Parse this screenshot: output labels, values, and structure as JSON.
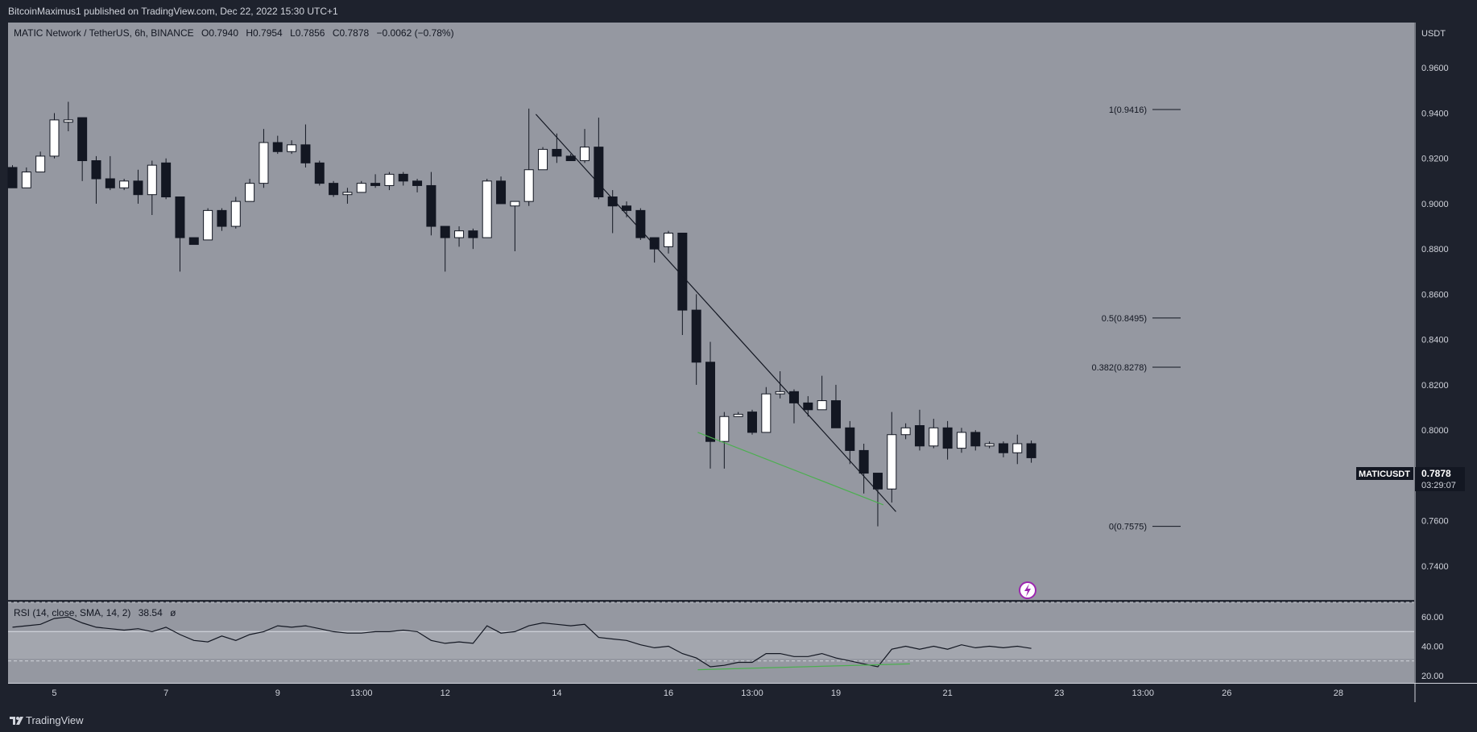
{
  "header": {
    "attribution": "BitcoinMaximus1 published on TradingView.com, Dec 22, 2022 15:30 UTC+1"
  },
  "legend": {
    "symbol": "MATIC Network / TetherUS, 6h, BINANCE",
    "o_label": "O",
    "o_value": "0.7940",
    "h_label": "H",
    "h_value": "0.7954",
    "l_label": "L",
    "l_value": "0.7856",
    "c_label": "C",
    "c_value": "0.7878",
    "change": "−0.0062 (−0.78%)"
  },
  "price_axis": {
    "currency": "USDT"
  },
  "last_price": {
    "symbol": "MATICUSDT",
    "price": "0.7878",
    "countdown": "03:29:07"
  },
  "fib_levels": [
    {
      "label": "1(0.9416)",
      "value": 0.9416
    },
    {
      "label": "0.5(0.8495)",
      "value": 0.8495
    },
    {
      "label": "0.382(0.8278)",
      "value": 0.8278
    },
    {
      "label": "0(0.7575)",
      "value": 0.7575
    }
  ],
  "rsi": {
    "label": "RSI (14, close, SMA, 14, 2)",
    "value": "38.54",
    "extra": "ø"
  },
  "footer": {
    "logo_icon": "tradingview-logo-icon",
    "brand": "TradingView"
  },
  "colors": {
    "pane_bg": "#9598a1",
    "rsi_bg": "#a3a6ae",
    "frame": "#1e222d",
    "bull_body": "#ffffff",
    "bear_body": "#131722",
    "trendline": "#131722",
    "divergence": "#4caf50",
    "axis_text": "#d1d4dc",
    "price_tag_bg": "#131722",
    "alert_ring": "#9c27b0"
  },
  "chart_data": [
    {
      "type": "candlestick",
      "title": "",
      "xlabel": "",
      "ylabel": "USDT",
      "ylim": [
        0.725,
        0.98
      ],
      "y_ticks": [
        0.96,
        0.94,
        0.92,
        0.9,
        0.88,
        0.86,
        0.84,
        0.82,
        0.8,
        0.78,
        0.76,
        0.74
      ],
      "y_tick_labels": [
        "0.9600",
        "0.9400",
        "0.9200",
        "0.9000",
        "0.8800",
        "0.8600",
        "0.8400",
        "0.8200",
        "0.8000",
        "0.7800",
        "0.7600",
        "0.7400"
      ],
      "x_ticks": [
        {
          "label": "5",
          "bar": 3
        },
        {
          "label": "7",
          "bar": 11
        },
        {
          "label": "9",
          "bar": 19
        },
        {
          "label": "13:00",
          "bar": 25
        },
        {
          "label": "12",
          "bar": 31
        },
        {
          "label": "14",
          "bar": 39
        },
        {
          "label": "16",
          "bar": 47
        },
        {
          "label": "13:00",
          "bar": 53
        },
        {
          "label": "19",
          "bar": 59
        },
        {
          "label": "21",
          "bar": 67
        },
        {
          "label": "23",
          "bar": 75
        },
        {
          "label": "13:00",
          "bar": 81
        },
        {
          "label": "26",
          "bar": 87
        },
        {
          "label": "28",
          "bar": 95
        }
      ],
      "grid": false,
      "candles": [
        {
          "o": 0.916,
          "h": 0.917,
          "l": 0.907,
          "c": 0.907
        },
        {
          "o": 0.907,
          "h": 0.916,
          "l": 0.907,
          "c": 0.914
        },
        {
          "o": 0.914,
          "h": 0.923,
          "l": 0.914,
          "c": 0.921
        },
        {
          "o": 0.921,
          "h": 0.94,
          "l": 0.92,
          "c": 0.937
        },
        {
          "o": 0.936,
          "h": 0.945,
          "l": 0.932,
          "c": 0.937
        },
        {
          "o": 0.938,
          "h": 0.938,
          "l": 0.91,
          "c": 0.919
        },
        {
          "o": 0.919,
          "h": 0.921,
          "l": 0.9,
          "c": 0.911
        },
        {
          "o": 0.911,
          "h": 0.921,
          "l": 0.906,
          "c": 0.907
        },
        {
          "o": 0.907,
          "h": 0.911,
          "l": 0.906,
          "c": 0.91
        },
        {
          "o": 0.91,
          "h": 0.915,
          "l": 0.9,
          "c": 0.904
        },
        {
          "o": 0.904,
          "h": 0.919,
          "l": 0.895,
          "c": 0.917
        },
        {
          "o": 0.918,
          "h": 0.92,
          "l": 0.902,
          "c": 0.903
        },
        {
          "o": 0.903,
          "h": 0.903,
          "l": 0.87,
          "c": 0.885
        },
        {
          "o": 0.885,
          "h": 0.885,
          "l": 0.882,
          "c": 0.882
        },
        {
          "o": 0.884,
          "h": 0.898,
          "l": 0.884,
          "c": 0.897
        },
        {
          "o": 0.897,
          "h": 0.898,
          "l": 0.888,
          "c": 0.89
        },
        {
          "o": 0.89,
          "h": 0.903,
          "l": 0.889,
          "c": 0.901
        },
        {
          "o": 0.901,
          "h": 0.911,
          "l": 0.901,
          "c": 0.909
        },
        {
          "o": 0.909,
          "h": 0.933,
          "l": 0.907,
          "c": 0.927
        },
        {
          "o": 0.927,
          "h": 0.93,
          "l": 0.922,
          "c": 0.923
        },
        {
          "o": 0.923,
          "h": 0.928,
          "l": 0.922,
          "c": 0.926
        },
        {
          "o": 0.926,
          "h": 0.935,
          "l": 0.916,
          "c": 0.918
        },
        {
          "o": 0.918,
          "h": 0.919,
          "l": 0.908,
          "c": 0.909
        },
        {
          "o": 0.909,
          "h": 0.91,
          "l": 0.903,
          "c": 0.904
        },
        {
          "o": 0.904,
          "h": 0.907,
          "l": 0.9,
          "c": 0.905
        },
        {
          "o": 0.905,
          "h": 0.91,
          "l": 0.905,
          "c": 0.909
        },
        {
          "o": 0.909,
          "h": 0.913,
          "l": 0.907,
          "c": 0.908
        },
        {
          "o": 0.908,
          "h": 0.914,
          "l": 0.906,
          "c": 0.913
        },
        {
          "o": 0.913,
          "h": 0.914,
          "l": 0.908,
          "c": 0.91
        },
        {
          "o": 0.91,
          "h": 0.911,
          "l": 0.905,
          "c": 0.908
        },
        {
          "o": 0.908,
          "h": 0.914,
          "l": 0.886,
          "c": 0.89
        },
        {
          "o": 0.89,
          "h": 0.89,
          "l": 0.87,
          "c": 0.885
        },
        {
          "o": 0.885,
          "h": 0.89,
          "l": 0.881,
          "c": 0.888
        },
        {
          "o": 0.888,
          "h": 0.889,
          "l": 0.88,
          "c": 0.885
        },
        {
          "o": 0.885,
          "h": 0.911,
          "l": 0.885,
          "c": 0.91
        },
        {
          "o": 0.91,
          "h": 0.912,
          "l": 0.9,
          "c": 0.9
        },
        {
          "o": 0.899,
          "h": 0.901,
          "l": 0.879,
          "c": 0.901
        },
        {
          "o": 0.901,
          "h": 0.942,
          "l": 0.899,
          "c": 0.915
        },
        {
          "o": 0.915,
          "h": 0.925,
          "l": 0.915,
          "c": 0.924
        },
        {
          "o": 0.924,
          "h": 0.931,
          "l": 0.918,
          "c": 0.921
        },
        {
          "o": 0.921,
          "h": 0.922,
          "l": 0.919,
          "c": 0.919
        },
        {
          "o": 0.919,
          "h": 0.933,
          "l": 0.918,
          "c": 0.925
        },
        {
          "o": 0.925,
          "h": 0.938,
          "l": 0.902,
          "c": 0.903
        },
        {
          "o": 0.903,
          "h": 0.906,
          "l": 0.887,
          "c": 0.899
        },
        {
          "o": 0.899,
          "h": 0.901,
          "l": 0.894,
          "c": 0.897
        },
        {
          "o": 0.897,
          "h": 0.898,
          "l": 0.884,
          "c": 0.885
        },
        {
          "o": 0.885,
          "h": 0.885,
          "l": 0.874,
          "c": 0.88
        },
        {
          "o": 0.881,
          "h": 0.888,
          "l": 0.878,
          "c": 0.887
        },
        {
          "o": 0.887,
          "h": 0.887,
          "l": 0.842,
          "c": 0.853
        },
        {
          "o": 0.853,
          "h": 0.86,
          "l": 0.82,
          "c": 0.83
        },
        {
          "o": 0.83,
          "h": 0.839,
          "l": 0.783,
          "c": 0.795
        },
        {
          "o": 0.795,
          "h": 0.808,
          "l": 0.783,
          "c": 0.806
        },
        {
          "o": 0.806,
          "h": 0.808,
          "l": 0.806,
          "c": 0.807
        },
        {
          "o": 0.808,
          "h": 0.809,
          "l": 0.798,
          "c": 0.799
        },
        {
          "o": 0.799,
          "h": 0.819,
          "l": 0.799,
          "c": 0.816
        },
        {
          "o": 0.816,
          "h": 0.826,
          "l": 0.814,
          "c": 0.817
        },
        {
          "o": 0.817,
          "h": 0.818,
          "l": 0.803,
          "c": 0.812
        },
        {
          "o": 0.812,
          "h": 0.815,
          "l": 0.806,
          "c": 0.809
        },
        {
          "o": 0.809,
          "h": 0.824,
          "l": 0.809,
          "c": 0.813
        },
        {
          "o": 0.813,
          "h": 0.82,
          "l": 0.801,
          "c": 0.801
        },
        {
          "o": 0.801,
          "h": 0.804,
          "l": 0.785,
          "c": 0.791
        },
        {
          "o": 0.791,
          "h": 0.794,
          "l": 0.772,
          "c": 0.781
        },
        {
          "o": 0.781,
          "h": 0.781,
          "l": 0.7575,
          "c": 0.774
        },
        {
          "o": 0.774,
          "h": 0.808,
          "l": 0.768,
          "c": 0.798
        },
        {
          "o": 0.798,
          "h": 0.803,
          "l": 0.796,
          "c": 0.801
        },
        {
          "o": 0.802,
          "h": 0.809,
          "l": 0.791,
          "c": 0.793
        },
        {
          "o": 0.793,
          "h": 0.805,
          "l": 0.792,
          "c": 0.801
        },
        {
          "o": 0.801,
          "h": 0.804,
          "l": 0.787,
          "c": 0.792
        },
        {
          "o": 0.792,
          "h": 0.801,
          "l": 0.79,
          "c": 0.799
        },
        {
          "o": 0.799,
          "h": 0.8,
          "l": 0.791,
          "c": 0.793
        },
        {
          "o": 0.793,
          "h": 0.795,
          "l": 0.792,
          "c": 0.794
        },
        {
          "o": 0.794,
          "h": 0.795,
          "l": 0.788,
          "c": 0.79
        },
        {
          "o": 0.79,
          "h": 0.798,
          "l": 0.785,
          "c": 0.794
        },
        {
          "o": 0.794,
          "h": 0.7954,
          "l": 0.7856,
          "c": 0.7878
        }
      ],
      "annotations": [
        {
          "type": "trendline",
          "from": {
            "bar": 37.5,
            "price": 0.9395
          },
          "to": {
            "bar": 63.3,
            "price": 0.764
          }
        },
        {
          "type": "divergence",
          "from": {
            "bar": 49.1,
            "price": 0.799
          },
          "to": {
            "bar": 62.4,
            "price": 0.767
          }
        }
      ]
    },
    {
      "type": "line",
      "title": "",
      "xlabel": "",
      "ylabel": "",
      "ylim": [
        15,
        70
      ],
      "y_ticks": [
        60,
        40,
        20
      ],
      "y_tick_labels": [
        "60.00",
        "40.00",
        "20.00"
      ],
      "bands": [
        70,
        50,
        30
      ],
      "series": [
        {
          "values": [
            53,
            54,
            55,
            59,
            60,
            56,
            53,
            52,
            51,
            52,
            50,
            53,
            48,
            44,
            43,
            47,
            44,
            48,
            50,
            54,
            53,
            54,
            52,
            50,
            49,
            49,
            50,
            50,
            51,
            50,
            44,
            42,
            43,
            42,
            54,
            49,
            50,
            54,
            56,
            55,
            54,
            55,
            46,
            45,
            44,
            41,
            39,
            40,
            35,
            32,
            26,
            27,
            29,
            29,
            35,
            35,
            33,
            33,
            35,
            32,
            30,
            28,
            26,
            38,
            40,
            38,
            40,
            38,
            41,
            39,
            40,
            39,
            40,
            38.54
          ]
        }
      ],
      "divergence": {
        "from": {
          "bar": 49.1,
          "value": 24
        },
        "to": {
          "bar": 64.3,
          "value": 28
        }
      }
    }
  ]
}
